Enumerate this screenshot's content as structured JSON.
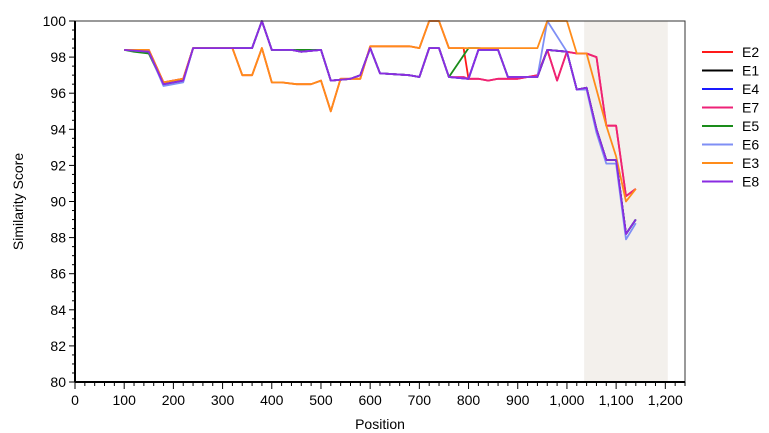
{
  "chart_data": {
    "type": "line",
    "xlabel": "Position",
    "ylabel": "Similarity Score",
    "xlim": [
      0,
      1240
    ],
    "ylim": [
      80,
      100
    ],
    "x_ticks": [
      0,
      100,
      200,
      300,
      400,
      500,
      600,
      700,
      800,
      900,
      1000,
      1100,
      1200
    ],
    "x_tick_labels": [
      "0",
      "100",
      "200",
      "300",
      "400",
      "500",
      "600",
      "700",
      "800",
      "900",
      "1,000",
      "1,100",
      "1,200"
    ],
    "y_ticks": [
      80,
      82,
      84,
      86,
      88,
      90,
      92,
      94,
      96,
      98,
      100
    ],
    "y_tick_labels": [
      "80",
      "82",
      "84",
      "86",
      "88",
      "90",
      "92",
      "94",
      "96",
      "98",
      "100"
    ],
    "grid": false,
    "legend_position": "right",
    "highlight_region": {
      "x_start": 1035,
      "x_end": 1205,
      "color": "#f3f0ec"
    },
    "series": [
      {
        "name": "E2",
        "color": "#ff1a1a",
        "points": [
          [
            100,
            98.4
          ],
          [
            120,
            98.4
          ],
          [
            150,
            98.4
          ],
          [
            180,
            96.6
          ],
          [
            220,
            96.8
          ],
          [
            240,
            98.5
          ],
          [
            280,
            98.5
          ],
          [
            320,
            98.5
          ],
          [
            340,
            97.0
          ],
          [
            360,
            97.0
          ],
          [
            380,
            98.5
          ],
          [
            400,
            96.6
          ],
          [
            420,
            96.6
          ],
          [
            450,
            96.5
          ],
          [
            480,
            96.5
          ],
          [
            500,
            96.7
          ],
          [
            520,
            95.0
          ],
          [
            540,
            96.8
          ],
          [
            560,
            96.8
          ],
          [
            580,
            96.8
          ],
          [
            600,
            98.6
          ],
          [
            640,
            98.6
          ],
          [
            680,
            98.6
          ],
          [
            700,
            98.5
          ],
          [
            720,
            100
          ],
          [
            740,
            100
          ],
          [
            760,
            98.5
          ],
          [
            790,
            98.5
          ],
          [
            800,
            96.8
          ],
          [
            820,
            96.8
          ],
          [
            840,
            96.7
          ],
          [
            860,
            96.8
          ],
          [
            880,
            96.8
          ],
          [
            900,
            96.8
          ],
          [
            940,
            97.0
          ],
          [
            960,
            98.4
          ],
          [
            980,
            96.7
          ],
          [
            1000,
            98.3
          ],
          [
            1020,
            98.2
          ],
          [
            1040,
            98.2
          ],
          [
            1060,
            98.0
          ],
          [
            1080,
            94.2
          ],
          [
            1100,
            94.2
          ],
          [
            1120,
            90.3
          ],
          [
            1140,
            90.7
          ]
        ]
      },
      {
        "name": "E1",
        "color": "#000000",
        "points": [
          [
            100,
            98.4
          ],
          [
            150,
            98.3
          ],
          [
            180,
            96.5
          ],
          [
            220,
            96.7
          ],
          [
            240,
            98.5
          ],
          [
            360,
            98.5
          ],
          [
            380,
            100
          ],
          [
            400,
            98.4
          ],
          [
            440,
            98.4
          ],
          [
            460,
            98.3
          ],
          [
            500,
            98.4
          ],
          [
            520,
            96.7
          ],
          [
            560,
            96.8
          ],
          [
            580,
            97.0
          ],
          [
            600,
            98.5
          ],
          [
            620,
            97.1
          ],
          [
            680,
            97.0
          ],
          [
            700,
            96.9
          ],
          [
            720,
            98.5
          ],
          [
            740,
            98.5
          ],
          [
            760,
            96.9
          ],
          [
            800,
            96.8
          ],
          [
            820,
            98.4
          ],
          [
            860,
            98.4
          ],
          [
            880,
            96.9
          ],
          [
            940,
            96.9
          ],
          [
            960,
            98.4
          ],
          [
            1000,
            98.3
          ],
          [
            1020,
            96.2
          ],
          [
            1040,
            96.3
          ],
          [
            1060,
            94.0
          ],
          [
            1080,
            92.3
          ],
          [
            1100,
            92.3
          ],
          [
            1120,
            88.2
          ],
          [
            1140,
            89.0
          ]
        ]
      },
      {
        "name": "E4",
        "color": "#1a1aff",
        "points": [
          [
            100,
            98.4
          ],
          [
            150,
            98.3
          ],
          [
            180,
            96.5
          ],
          [
            220,
            96.7
          ],
          [
            240,
            98.5
          ],
          [
            360,
            98.5
          ],
          [
            380,
            100
          ],
          [
            400,
            98.4
          ],
          [
            440,
            98.4
          ],
          [
            460,
            98.3
          ],
          [
            500,
            98.4
          ],
          [
            520,
            96.7
          ],
          [
            560,
            96.8
          ],
          [
            580,
            97.0
          ],
          [
            600,
            98.5
          ],
          [
            620,
            97.1
          ],
          [
            680,
            97.0
          ],
          [
            700,
            96.9
          ],
          [
            720,
            98.5
          ],
          [
            740,
            98.5
          ],
          [
            760,
            96.9
          ],
          [
            800,
            96.8
          ],
          [
            820,
            98.4
          ],
          [
            860,
            98.4
          ],
          [
            880,
            96.9
          ],
          [
            940,
            96.9
          ],
          [
            960,
            98.4
          ],
          [
            1000,
            98.3
          ],
          [
            1020,
            96.2
          ],
          [
            1040,
            96.3
          ],
          [
            1060,
            94.0
          ],
          [
            1080,
            92.3
          ],
          [
            1100,
            92.3
          ],
          [
            1120,
            88.2
          ],
          [
            1140,
            89.0
          ]
        ]
      },
      {
        "name": "E7",
        "color": "#ee2277",
        "points": [
          [
            100,
            98.4
          ],
          [
            120,
            98.4
          ],
          [
            150,
            98.4
          ],
          [
            180,
            96.6
          ],
          [
            220,
            96.8
          ],
          [
            240,
            98.5
          ],
          [
            360,
            98.5
          ],
          [
            380,
            100
          ],
          [
            400,
            98.4
          ],
          [
            440,
            98.4
          ],
          [
            460,
            98.3
          ],
          [
            500,
            98.4
          ],
          [
            520,
            96.7
          ],
          [
            560,
            96.8
          ],
          [
            580,
            97.0
          ],
          [
            600,
            98.5
          ],
          [
            620,
            97.1
          ],
          [
            680,
            97.0
          ],
          [
            700,
            96.9
          ],
          [
            720,
            98.5
          ],
          [
            740,
            98.5
          ],
          [
            760,
            96.9
          ],
          [
            790,
            96.9
          ],
          [
            800,
            96.8
          ],
          [
            820,
            96.8
          ],
          [
            840,
            96.7
          ],
          [
            860,
            96.8
          ],
          [
            880,
            96.8
          ],
          [
            900,
            96.8
          ],
          [
            940,
            97.0
          ],
          [
            960,
            98.4
          ],
          [
            980,
            96.7
          ],
          [
            1000,
            98.3
          ],
          [
            1020,
            98.2
          ],
          [
            1040,
            98.2
          ],
          [
            1060,
            98.0
          ],
          [
            1080,
            94.2
          ],
          [
            1100,
            94.2
          ],
          [
            1120,
            90.3
          ],
          [
            1140,
            90.7
          ]
        ]
      },
      {
        "name": "E5",
        "color": "#1a8c1a",
        "points": [
          [
            100,
            98.4
          ],
          [
            120,
            98.3
          ],
          [
            150,
            98.2
          ],
          [
            180,
            96.5
          ],
          [
            220,
            96.7
          ],
          [
            240,
            98.5
          ],
          [
            360,
            98.5
          ],
          [
            380,
            100
          ],
          [
            400,
            98.4
          ],
          [
            440,
            98.4
          ],
          [
            460,
            98.4
          ],
          [
            500,
            98.4
          ],
          [
            520,
            96.7
          ],
          [
            560,
            96.8
          ],
          [
            580,
            97.0
          ],
          [
            600,
            98.5
          ],
          [
            620,
            97.1
          ],
          [
            680,
            97.0
          ],
          [
            700,
            96.9
          ],
          [
            720,
            98.5
          ],
          [
            740,
            98.5
          ],
          [
            760,
            96.9
          ],
          [
            800,
            98.5
          ],
          [
            820,
            98.5
          ],
          [
            860,
            98.4
          ],
          [
            880,
            96.9
          ],
          [
            940,
            96.9
          ],
          [
            960,
            98.4
          ],
          [
            1000,
            98.3
          ],
          [
            1020,
            96.2
          ],
          [
            1040,
            96.3
          ],
          [
            1060,
            94.0
          ],
          [
            1080,
            92.3
          ],
          [
            1100,
            92.3
          ],
          [
            1120,
            88.2
          ],
          [
            1140,
            89.0
          ]
        ]
      },
      {
        "name": "E6",
        "color": "#7f8ff5",
        "points": [
          [
            100,
            98.4
          ],
          [
            150,
            98.3
          ],
          [
            180,
            96.4
          ],
          [
            220,
            96.6
          ],
          [
            240,
            98.5
          ],
          [
            360,
            98.5
          ],
          [
            380,
            100
          ],
          [
            400,
            98.4
          ],
          [
            440,
            98.4
          ],
          [
            460,
            98.3
          ],
          [
            500,
            98.4
          ],
          [
            520,
            96.7
          ],
          [
            560,
            96.8
          ],
          [
            580,
            97.0
          ],
          [
            600,
            98.5
          ],
          [
            620,
            97.1
          ],
          [
            680,
            97.0
          ],
          [
            700,
            96.9
          ],
          [
            720,
            98.5
          ],
          [
            740,
            98.5
          ],
          [
            760,
            96.9
          ],
          [
            800,
            96.8
          ],
          [
            820,
            98.4
          ],
          [
            860,
            98.4
          ],
          [
            880,
            96.9
          ],
          [
            940,
            96.9
          ],
          [
            960,
            100
          ],
          [
            1000,
            98.3
          ],
          [
            1020,
            96.2
          ],
          [
            1040,
            96.2
          ],
          [
            1060,
            93.8
          ],
          [
            1080,
            92.1
          ],
          [
            1100,
            92.1
          ],
          [
            1120,
            87.9
          ],
          [
            1140,
            88.8
          ]
        ]
      },
      {
        "name": "E3",
        "color": "#ff8c1a",
        "points": [
          [
            100,
            98.4
          ],
          [
            120,
            98.4
          ],
          [
            150,
            98.4
          ],
          [
            180,
            96.6
          ],
          [
            220,
            96.8
          ],
          [
            240,
            98.5
          ],
          [
            320,
            98.5
          ],
          [
            340,
            97.0
          ],
          [
            360,
            97.0
          ],
          [
            380,
            98.5
          ],
          [
            400,
            96.6
          ],
          [
            420,
            96.6
          ],
          [
            450,
            96.5
          ],
          [
            480,
            96.5
          ],
          [
            500,
            96.7
          ],
          [
            520,
            95.0
          ],
          [
            540,
            96.8
          ],
          [
            560,
            96.8
          ],
          [
            580,
            96.8
          ],
          [
            600,
            98.6
          ],
          [
            640,
            98.6
          ],
          [
            680,
            98.6
          ],
          [
            700,
            98.5
          ],
          [
            720,
            100
          ],
          [
            740,
            100
          ],
          [
            760,
            98.5
          ],
          [
            800,
            98.5
          ],
          [
            820,
            98.5
          ],
          [
            860,
            98.5
          ],
          [
            880,
            98.5
          ],
          [
            940,
            98.5
          ],
          [
            960,
            100
          ],
          [
            980,
            100
          ],
          [
            1000,
            100
          ],
          [
            1020,
            98.2
          ],
          [
            1040,
            98.2
          ],
          [
            1060,
            96.2
          ],
          [
            1080,
            94.2
          ],
          [
            1100,
            92.5
          ],
          [
            1120,
            90.0
          ],
          [
            1140,
            90.7
          ]
        ]
      },
      {
        "name": "E8",
        "color": "#8a2be2",
        "points": [
          [
            100,
            98.4
          ],
          [
            150,
            98.3
          ],
          [
            180,
            96.5
          ],
          [
            220,
            96.7
          ],
          [
            240,
            98.5
          ],
          [
            360,
            98.5
          ],
          [
            380,
            100
          ],
          [
            400,
            98.4
          ],
          [
            440,
            98.4
          ],
          [
            460,
            98.3
          ],
          [
            500,
            98.4
          ],
          [
            520,
            96.7
          ],
          [
            560,
            96.8
          ],
          [
            580,
            97.0
          ],
          [
            600,
            98.5
          ],
          [
            620,
            97.1
          ],
          [
            680,
            97.0
          ],
          [
            700,
            96.9
          ],
          [
            720,
            98.5
          ],
          [
            740,
            98.5
          ],
          [
            760,
            96.9
          ],
          [
            800,
            96.8
          ],
          [
            820,
            98.4
          ],
          [
            860,
            98.4
          ],
          [
            880,
            96.9
          ],
          [
            940,
            96.9
          ],
          [
            960,
            98.4
          ],
          [
            1000,
            98.3
          ],
          [
            1020,
            96.2
          ],
          [
            1040,
            96.3
          ],
          [
            1060,
            94.0
          ],
          [
            1080,
            92.3
          ],
          [
            1100,
            92.3
          ],
          [
            1120,
            88.2
          ],
          [
            1140,
            89.0
          ]
        ]
      }
    ]
  }
}
